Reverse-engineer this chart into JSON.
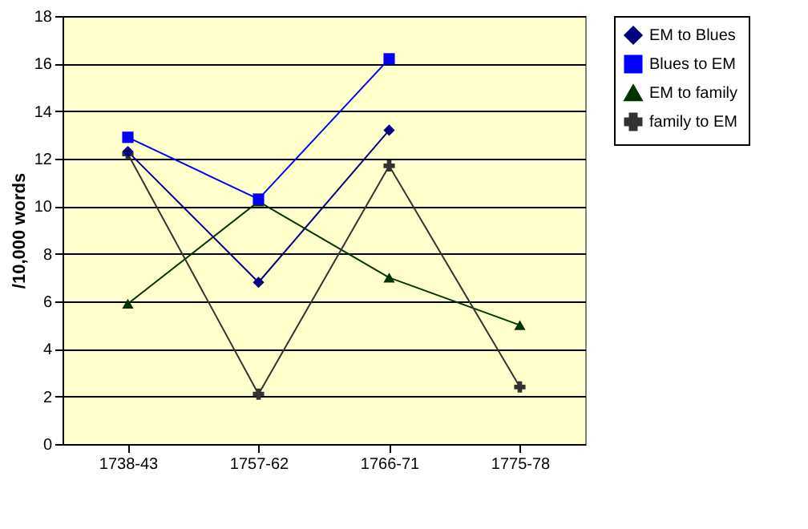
{
  "chart_data": {
    "type": "line",
    "ylabel": "/10,000 words",
    "categories": [
      "1738-43",
      "1757-62",
      "1766-71",
      "1775-78"
    ],
    "series": [
      {
        "name": "EM to Blues",
        "color": "#000080",
        "marker": "diamond",
        "values": [
          12.3,
          6.8,
          13.2,
          null
        ]
      },
      {
        "name": "Blues to EM",
        "color": "#0000ff",
        "marker": "square",
        "values": [
          12.9,
          10.3,
          16.2,
          null
        ]
      },
      {
        "name": "EM to family",
        "color": "#003300",
        "marker": "triangle",
        "values": [
          5.9,
          10.2,
          7.0,
          5.0
        ]
      },
      {
        "name": "family to EM",
        "color": "#333333",
        "marker": "cross",
        "values": [
          12.2,
          2.1,
          11.7,
          2.4
        ]
      }
    ],
    "ylim": [
      0,
      18
    ],
    "yticks": [
      0,
      2,
      4,
      6,
      8,
      10,
      12,
      14,
      16,
      18
    ],
    "grid": "y",
    "legend": "right",
    "line_style": "solid"
  }
}
